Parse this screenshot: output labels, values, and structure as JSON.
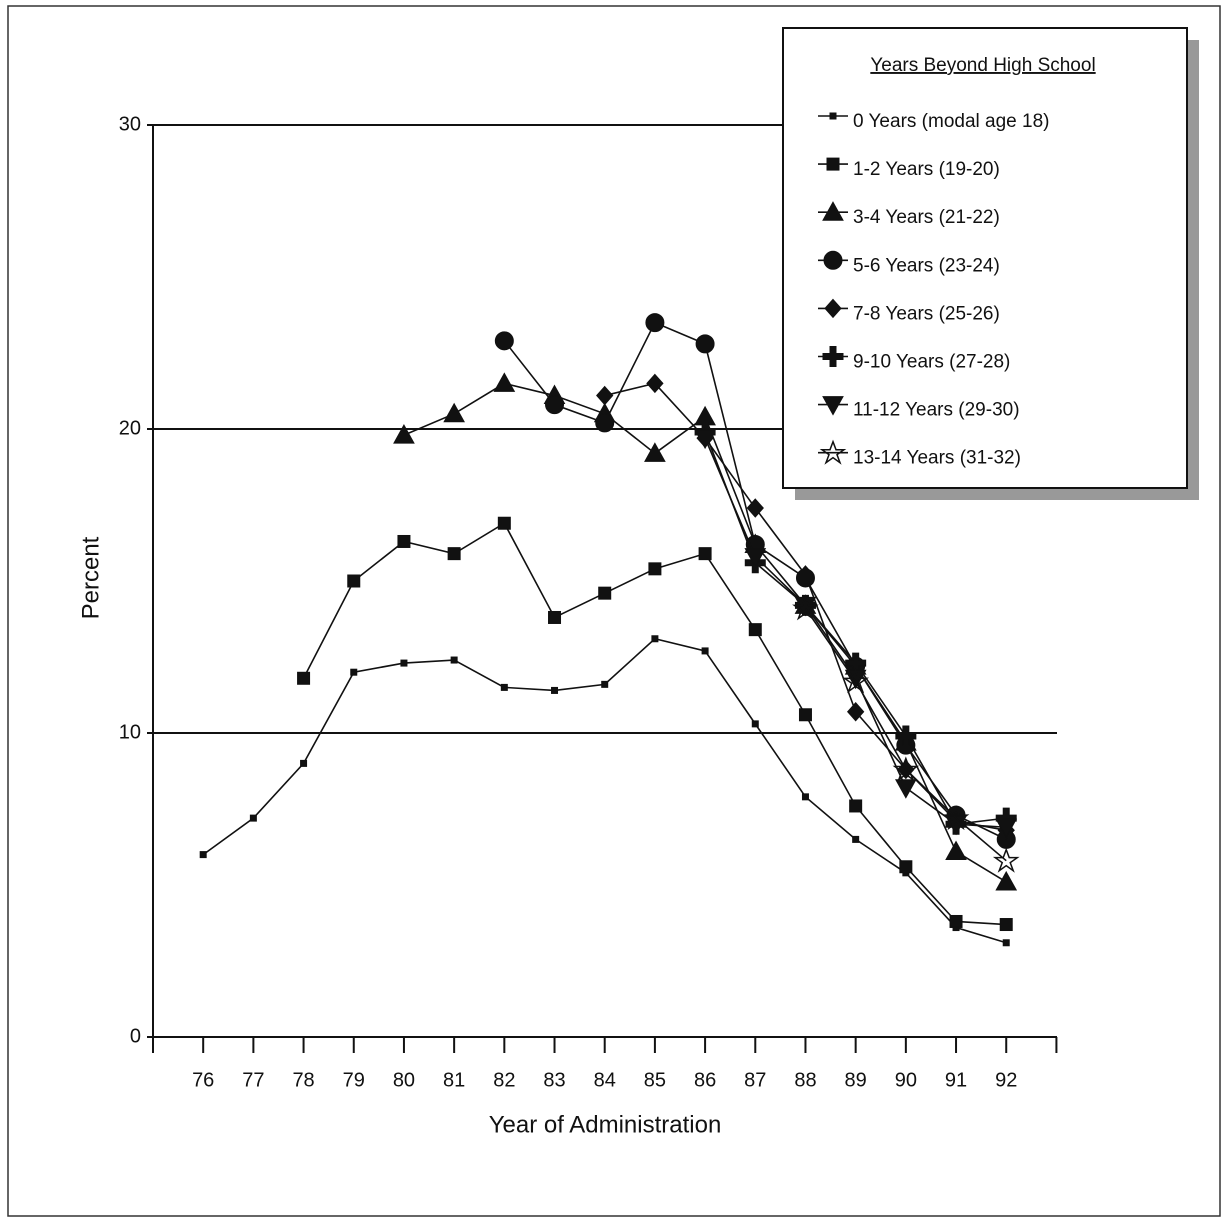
{
  "chart_data": {
    "type": "line",
    "xlabel": "Year of Administration",
    "ylabel": "Percent",
    "legend_title": "Years Beyond High School",
    "legend_position": "upper right",
    "categories": [
      "76",
      "77",
      "78",
      "79",
      "80",
      "81",
      "82",
      "83",
      "84",
      "85",
      "86",
      "87",
      "88",
      "89",
      "90",
      "91",
      "92"
    ],
    "ylim": [
      0,
      30
    ],
    "yticks": [
      0,
      10,
      20,
      30
    ],
    "grid": true,
    "series": [
      {
        "name": "0 Years (modal age 18)",
        "color": "#111111",
        "marker": "small-square",
        "values": [
          6.0,
          7.2,
          9.0,
          12.0,
          12.3,
          12.4,
          11.5,
          11.4,
          11.6,
          13.1,
          12.7,
          10.3,
          7.9,
          6.5,
          5.4,
          3.6,
          3.1
        ]
      },
      {
        "name": "1-2 Years (19-20)",
        "color": "#111111",
        "marker": "square",
        "values": [
          null,
          null,
          11.8,
          15.0,
          16.3,
          15.9,
          16.9,
          13.8,
          14.6,
          15.4,
          15.9,
          13.4,
          10.6,
          7.6,
          5.6,
          3.8,
          3.7
        ]
      },
      {
        "name": "3-4 Years (21-22)",
        "color": "#111111",
        "marker": "triangle",
        "values": [
          null,
          null,
          null,
          null,
          19.8,
          20.5,
          21.5,
          21.1,
          20.5,
          19.2,
          20.4,
          16.2,
          14.2,
          12.2,
          9.7,
          6.1,
          5.1
        ]
      },
      {
        "name": "5-6 Years (23-24)",
        "color": "#111111",
        "marker": "circle",
        "values": [
          null,
          null,
          null,
          null,
          null,
          null,
          22.9,
          20.8,
          20.2,
          23.5,
          22.8,
          16.2,
          15.1,
          12.2,
          9.6,
          7.3,
          6.5
        ]
      },
      {
        "name": "7-8 Years (25-26)",
        "color": "#111111",
        "marker": "diamond",
        "values": [
          null,
          null,
          null,
          null,
          null,
          null,
          null,
          null,
          21.1,
          21.5,
          19.7,
          17.4,
          15.2,
          10.7,
          8.8,
          7.1,
          6.8
        ]
      },
      {
        "name": "9-10 Years (27-28)",
        "color": "#111111",
        "marker": "plus",
        "values": [
          null,
          null,
          null,
          null,
          null,
          null,
          null,
          null,
          null,
          null,
          19.9,
          15.6,
          14.2,
          12.3,
          9.9,
          7.0,
          7.2
        ]
      },
      {
        "name": "11-12 Years (29-30)",
        "color": "#111111",
        "marker": "triangle-down",
        "values": [
          null,
          null,
          null,
          null,
          null,
          null,
          null,
          null,
          null,
          null,
          19.7,
          15.8,
          14.2,
          11.8,
          8.2,
          7.0,
          6.9
        ]
      },
      {
        "name": "13-14 Years (31-32)",
        "color": "#111111",
        "marker": "star",
        "values": [
          null,
          null,
          null,
          null,
          null,
          null,
          null,
          null,
          null,
          null,
          null,
          null,
          14.1,
          11.7,
          8.8,
          7.2,
          5.8
        ]
      }
    ]
  }
}
